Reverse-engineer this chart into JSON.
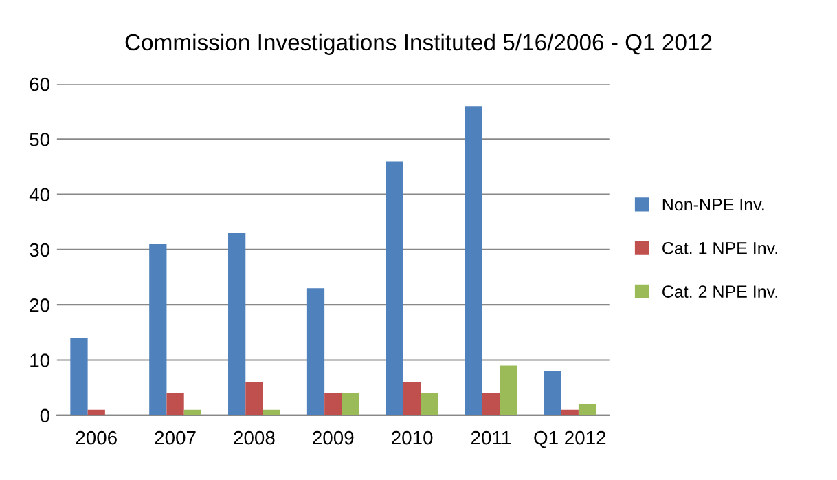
{
  "chart_data": {
    "type": "bar",
    "title": "Commission Investigations Instituted 5/16/2006 - Q1 2012",
    "categories": [
      "2006",
      "2007",
      "2008",
      "2009",
      "2010",
      "2011",
      "Q1 2012"
    ],
    "series": [
      {
        "name": "Non-NPE Inv.",
        "color": "#4f81bd",
        "values": [
          14,
          31,
          33,
          23,
          46,
          56,
          8
        ]
      },
      {
        "name": "Cat. 1 NPE Inv.",
        "color": "#c0504d",
        "values": [
          1,
          4,
          6,
          4,
          6,
          4,
          1
        ]
      },
      {
        "name": "Cat. 2 NPE Inv.",
        "color": "#9bbb59",
        "values": [
          0,
          1,
          1,
          4,
          4,
          9,
          2
        ]
      }
    ],
    "ylim": [
      0,
      60
    ],
    "yticks": [
      0,
      10,
      20,
      30,
      40,
      50,
      60
    ],
    "grid": "y",
    "legend": "right"
  }
}
